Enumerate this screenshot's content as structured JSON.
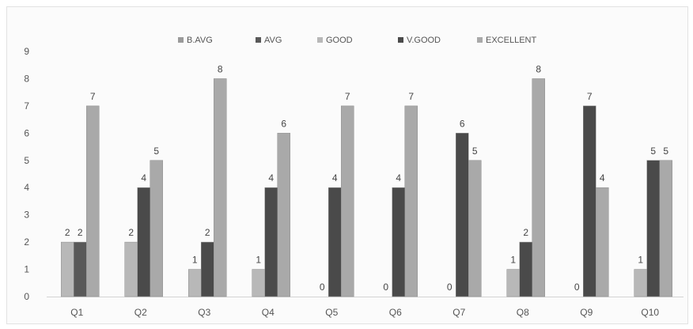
{
  "chart_data": {
    "type": "bar",
    "title": "",
    "xlabel": "",
    "ylabel": "",
    "categories": [
      "Q1",
      "Q2",
      "Q3",
      "Q4",
      "Q5",
      "Q6",
      "Q7",
      "Q8",
      "Q9",
      "Q10"
    ],
    "ylim": [
      0,
      9
    ],
    "yticks": [
      "0",
      "1",
      "2",
      "3",
      "4",
      "5",
      "6",
      "7",
      "8",
      "9"
    ],
    "grid": false,
    "legend_position": "top",
    "series": [
      {
        "name": "B.AVG",
        "color": "#9a9a9a",
        "values": [
          null,
          null,
          null,
          null,
          null,
          null,
          null,
          null,
          null,
          null
        ]
      },
      {
        "name": "AVG",
        "color": "#595959",
        "values": [
          2,
          null,
          null,
          null,
          null,
          null,
          null,
          null,
          null,
          null
        ]
      },
      {
        "name": "GOOD",
        "color": "#b8b8b8",
        "values": [
          2,
          2,
          1,
          1,
          0,
          0,
          0,
          1,
          0,
          1
        ]
      },
      {
        "name": "V.GOOD",
        "color": "#4a4a4a",
        "values": [
          null,
          4,
          2,
          4,
          4,
          4,
          6,
          2,
          7,
          5
        ]
      },
      {
        "name": "EXCELLENT",
        "color": "#a9a9a9",
        "values": [
          7,
          5,
          8,
          6,
          7,
          7,
          5,
          8,
          4,
          5
        ]
      }
    ]
  }
}
